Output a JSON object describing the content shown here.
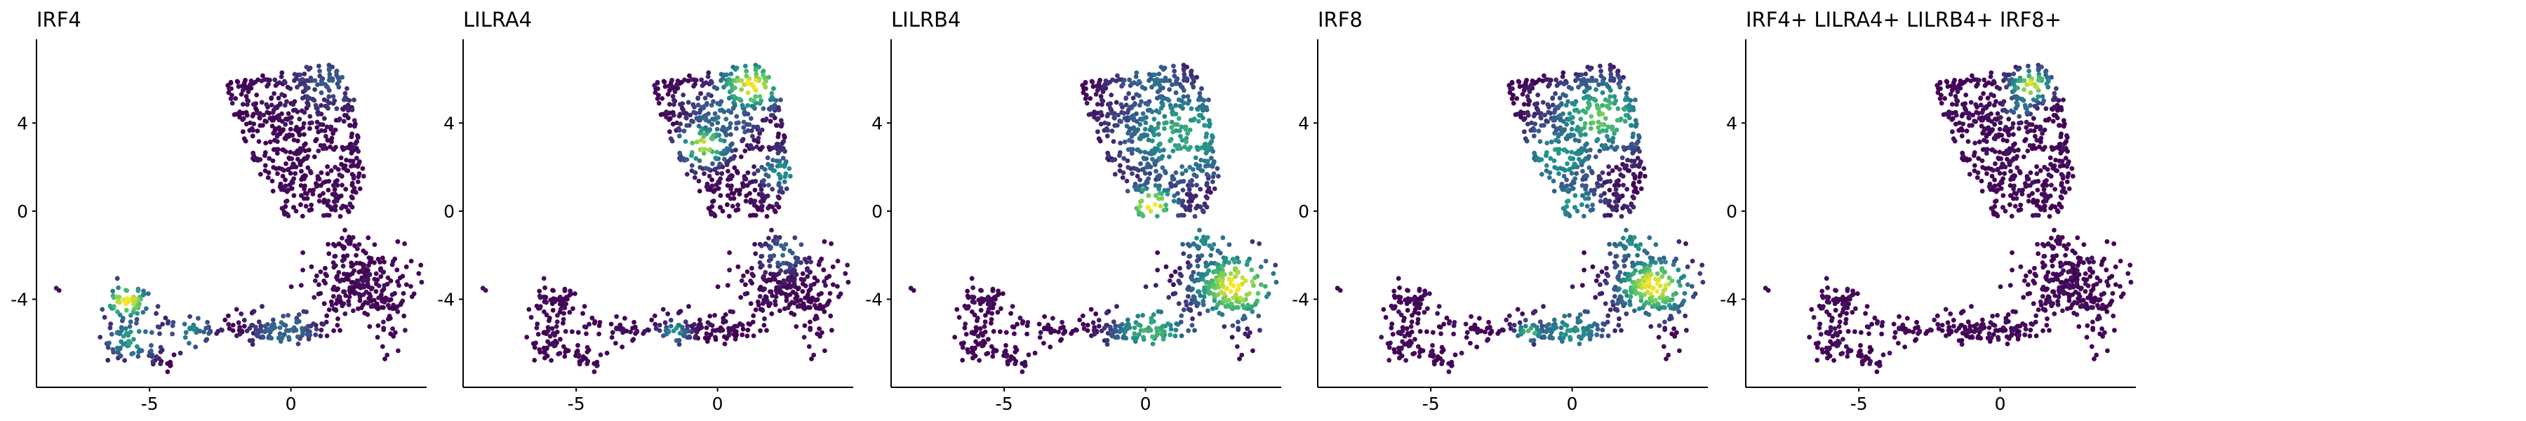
{
  "figure": {
    "colormap": [
      "#440154",
      "#3b528b",
      "#21908d",
      "#5dc963",
      "#fde725"
    ],
    "point_radius": 3.4
  },
  "chart_data": [
    {
      "type": "scatter",
      "title": "IRF4",
      "xlabel": "",
      "ylabel": "",
      "xlim": [
        -9,
        4.8
      ],
      "ylim": [
        -8,
        7.8
      ],
      "x_ticks": [
        -5,
        0
      ],
      "y_ticks": [
        4,
        0,
        -4
      ],
      "grid": false,
      "legend": "none",
      "hotspots": [
        {
          "x": -5.8,
          "y": -4.1,
          "r": 0.8,
          "v": 1.0
        },
        {
          "x": -5.6,
          "y": -5.8,
          "r": 1.0,
          "v": 0.55
        },
        {
          "x": -3.6,
          "y": -5.5,
          "r": 0.9,
          "v": 0.45
        },
        {
          "x": -0.2,
          "y": -5.4,
          "r": 1.2,
          "v": 0.35
        },
        {
          "x": 1.4,
          "y": 6.0,
          "r": 1.6,
          "v": 0.25
        }
      ]
    },
    {
      "type": "scatter",
      "title": "LILRA4",
      "xlabel": "",
      "ylabel": "",
      "xlim": [
        -9,
        4.8
      ],
      "ylim": [
        -8,
        7.8
      ],
      "x_ticks": [
        -5,
        0
      ],
      "y_ticks": [
        4,
        0,
        -4
      ],
      "grid": false,
      "legend": "none",
      "hotspots": [
        {
          "x": 1.2,
          "y": 5.7,
          "r": 1.1,
          "v": 1.0
        },
        {
          "x": -0.5,
          "y": 3.0,
          "r": 0.9,
          "v": 0.9
        },
        {
          "x": 2.3,
          "y": 1.8,
          "r": 0.9,
          "v": 0.5
        },
        {
          "x": 0.2,
          "y": 4.3,
          "r": 1.4,
          "v": 0.35
        },
        {
          "x": 2.4,
          "y": -1.8,
          "r": 1.0,
          "v": 0.3
        },
        {
          "x": -1.5,
          "y": -5.5,
          "r": 0.5,
          "v": 0.55
        }
      ]
    },
    {
      "type": "scatter",
      "title": "LILRB4",
      "xlabel": "",
      "ylabel": "",
      "xlim": [
        -9,
        4.8
      ],
      "ylim": [
        -8,
        7.8
      ],
      "x_ticks": [
        -5,
        0
      ],
      "y_ticks": [
        4,
        0,
        -4
      ],
      "grid": false,
      "legend": "none",
      "hotspots": [
        {
          "x": 0.2,
          "y": 0.3,
          "r": 0.9,
          "v": 1.0
        },
        {
          "x": 3.2,
          "y": -3.4,
          "r": 1.5,
          "v": 1.0
        },
        {
          "x": 1.3,
          "y": 3.5,
          "r": 2.3,
          "v": 0.6
        },
        {
          "x": 0.2,
          "y": -5.5,
          "r": 1.4,
          "v": 0.65
        },
        {
          "x": 2.2,
          "y": -1.2,
          "r": 1.2,
          "v": 0.5
        },
        {
          "x": 0.2,
          "y": 6.0,
          "r": 1.5,
          "v": 0.35
        }
      ]
    },
    {
      "type": "scatter",
      "title": "IRF8",
      "xlabel": "",
      "ylabel": "",
      "xlim": [
        -9,
        4.8
      ],
      "ylim": [
        -8,
        7.8
      ],
      "x_ticks": [
        -5,
        0
      ],
      "y_ticks": [
        4,
        0,
        -4
      ],
      "grid": false,
      "legend": "none",
      "hotspots": [
        {
          "x": 2.9,
          "y": -3.4,
          "r": 1.3,
          "v": 1.0
        },
        {
          "x": 1.0,
          "y": 4.3,
          "r": 1.7,
          "v": 0.75
        },
        {
          "x": -0.5,
          "y": 2.5,
          "r": 1.6,
          "v": 0.55
        },
        {
          "x": 0.0,
          "y": 0.3,
          "r": 1.2,
          "v": 0.5
        },
        {
          "x": 0.0,
          "y": -5.5,
          "r": 1.4,
          "v": 0.5
        },
        {
          "x": -1.5,
          "y": -5.5,
          "r": 0.5,
          "v": 0.7
        },
        {
          "x": 2.3,
          "y": -1.3,
          "r": 1.2,
          "v": 0.5
        }
      ]
    },
    {
      "type": "scatter",
      "title": "IRF4+ LILRA4+ LILRB4+ IRF8+",
      "xlabel": "",
      "ylabel": "",
      "xlim": [
        -9,
        4.8
      ],
      "ylim": [
        -8,
        7.8
      ],
      "x_ticks": [
        -5,
        0
      ],
      "y_ticks": [
        4,
        0,
        -4
      ],
      "grid": false,
      "legend": "none",
      "hotspots": [
        {
          "x": 1.1,
          "y": 5.7,
          "r": 0.75,
          "v": 0.95
        },
        {
          "x": 0.7,
          "y": 4.8,
          "r": 0.6,
          "v": 0.4
        }
      ]
    }
  ]
}
